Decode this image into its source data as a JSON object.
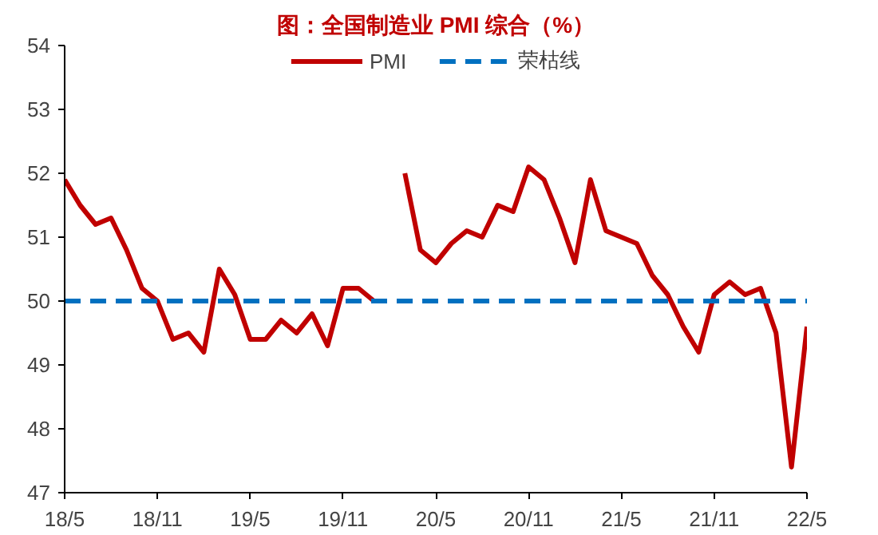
{
  "chart_data": {
    "type": "line",
    "title": "图：全国制造业 PMI 综合（%）",
    "categories": [
      "18/5",
      null,
      null,
      null,
      null,
      null,
      "18/11",
      null,
      null,
      null,
      null,
      null,
      "19/5",
      null,
      null,
      null,
      null,
      null,
      "19/11",
      null,
      null,
      null,
      null,
      null,
      "20/5",
      null,
      null,
      null,
      null,
      null,
      "20/11",
      null,
      null,
      null,
      null,
      null,
      "21/5",
      null,
      null,
      null,
      null,
      null,
      "21/11",
      null,
      null,
      null,
      null,
      null,
      "22/5"
    ],
    "series": [
      {
        "name": "PMI",
        "color": "#c00000",
        "values": [
          51.9,
          51.5,
          51.2,
          51.3,
          50.8,
          50.2,
          50.0,
          49.4,
          49.5,
          49.2,
          50.5,
          50.1,
          49.4,
          49.4,
          49.7,
          49.5,
          49.8,
          49.3,
          50.2,
          50.2,
          50.0,
          null,
          52.0,
          50.8,
          50.6,
          50.9,
          51.1,
          51.0,
          51.5,
          51.4,
          52.1,
          51.9,
          51.3,
          50.6,
          51.9,
          51.1,
          51.0,
          50.9,
          50.4,
          50.1,
          49.6,
          49.2,
          50.1,
          50.3,
          50.1,
          50.2,
          49.5,
          47.4,
          49.6
        ]
      }
    ],
    "ref_lines": [
      {
        "axis": "y",
        "value": 50,
        "label": "荣枯线",
        "color": "#0070c0",
        "line_style": "dashed"
      }
    ],
    "ylim": [
      47,
      54
    ],
    "yticks": [
      47,
      48,
      49,
      50,
      51,
      52,
      53,
      54
    ],
    "grid": false,
    "legend": "top",
    "line_style": "solid",
    "marker": "none"
  }
}
